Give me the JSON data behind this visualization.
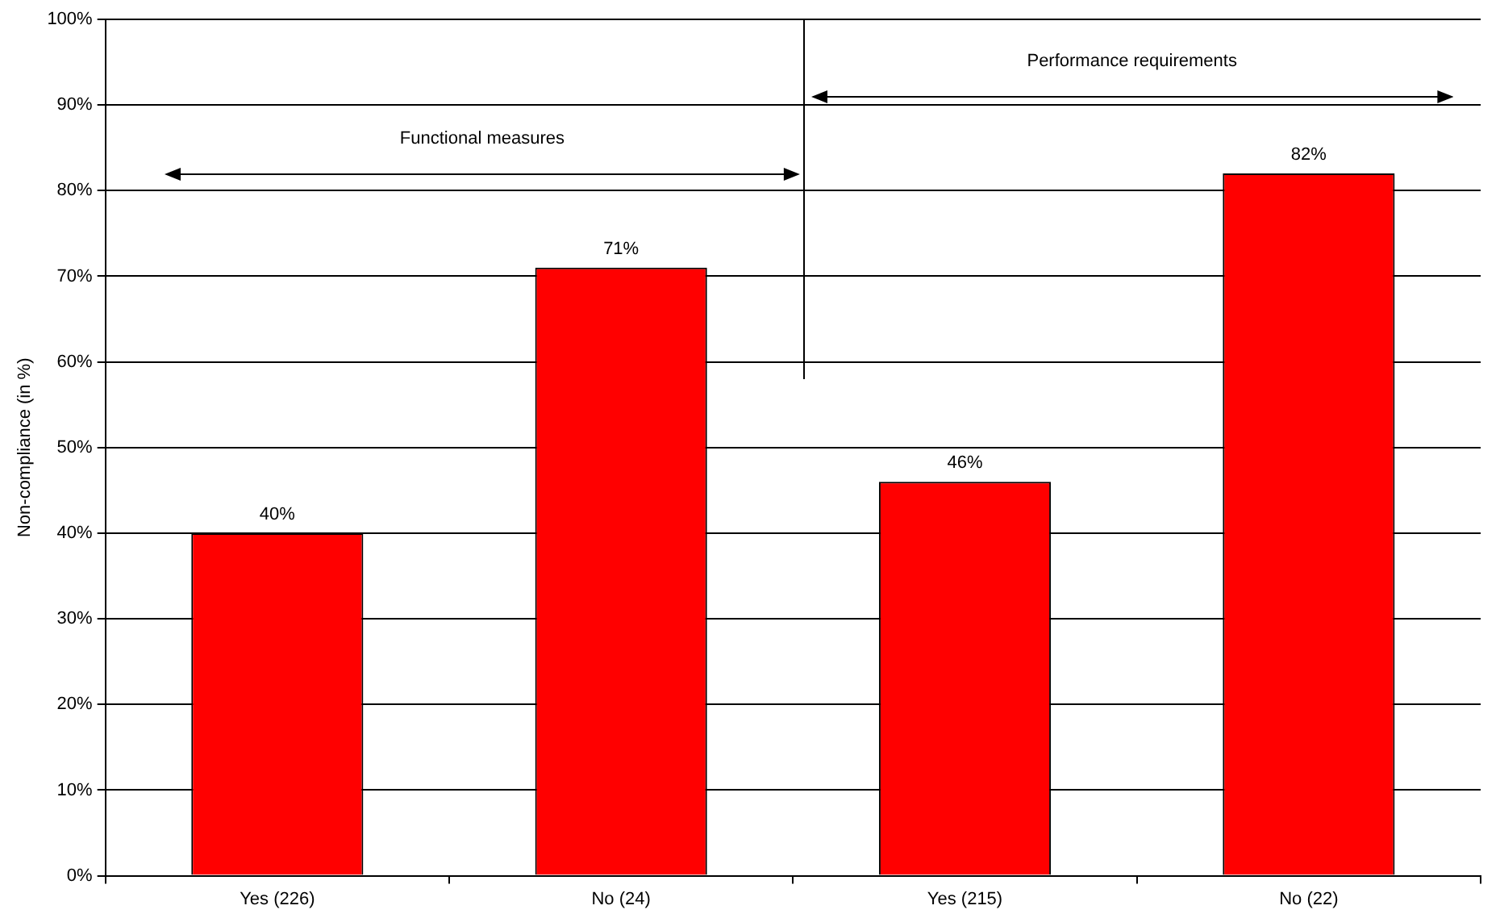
{
  "chart_data": {
    "type": "bar",
    "ylabel": "Non-compliance (in %)",
    "categories": [
      "Yes (226)",
      "No (24)",
      "Yes (215)",
      "No (22)"
    ],
    "values": [
      40,
      71,
      46,
      82
    ],
    "value_labels": [
      "40%",
      "71%",
      "46%",
      "82%"
    ],
    "color": "#ff0000",
    "ylim": [
      0,
      100
    ],
    "yticks": [
      {
        "value": 0,
        "label": "0%"
      },
      {
        "value": 10,
        "label": "10%"
      },
      {
        "value": 20,
        "label": "20%"
      },
      {
        "value": 30,
        "label": "30%"
      },
      {
        "value": 40,
        "label": "40%"
      },
      {
        "value": 50,
        "label": "50%"
      },
      {
        "value": 60,
        "label": "60%"
      },
      {
        "value": 70,
        "label": "70%"
      },
      {
        "value": 80,
        "label": "80%"
      },
      {
        "value": 90,
        "label": "90%"
      },
      {
        "value": 100,
        "label": "100%"
      }
    ],
    "grid": "y",
    "legend": false,
    "annotations": [
      "Functional measures",
      "Performance requirements"
    ]
  }
}
